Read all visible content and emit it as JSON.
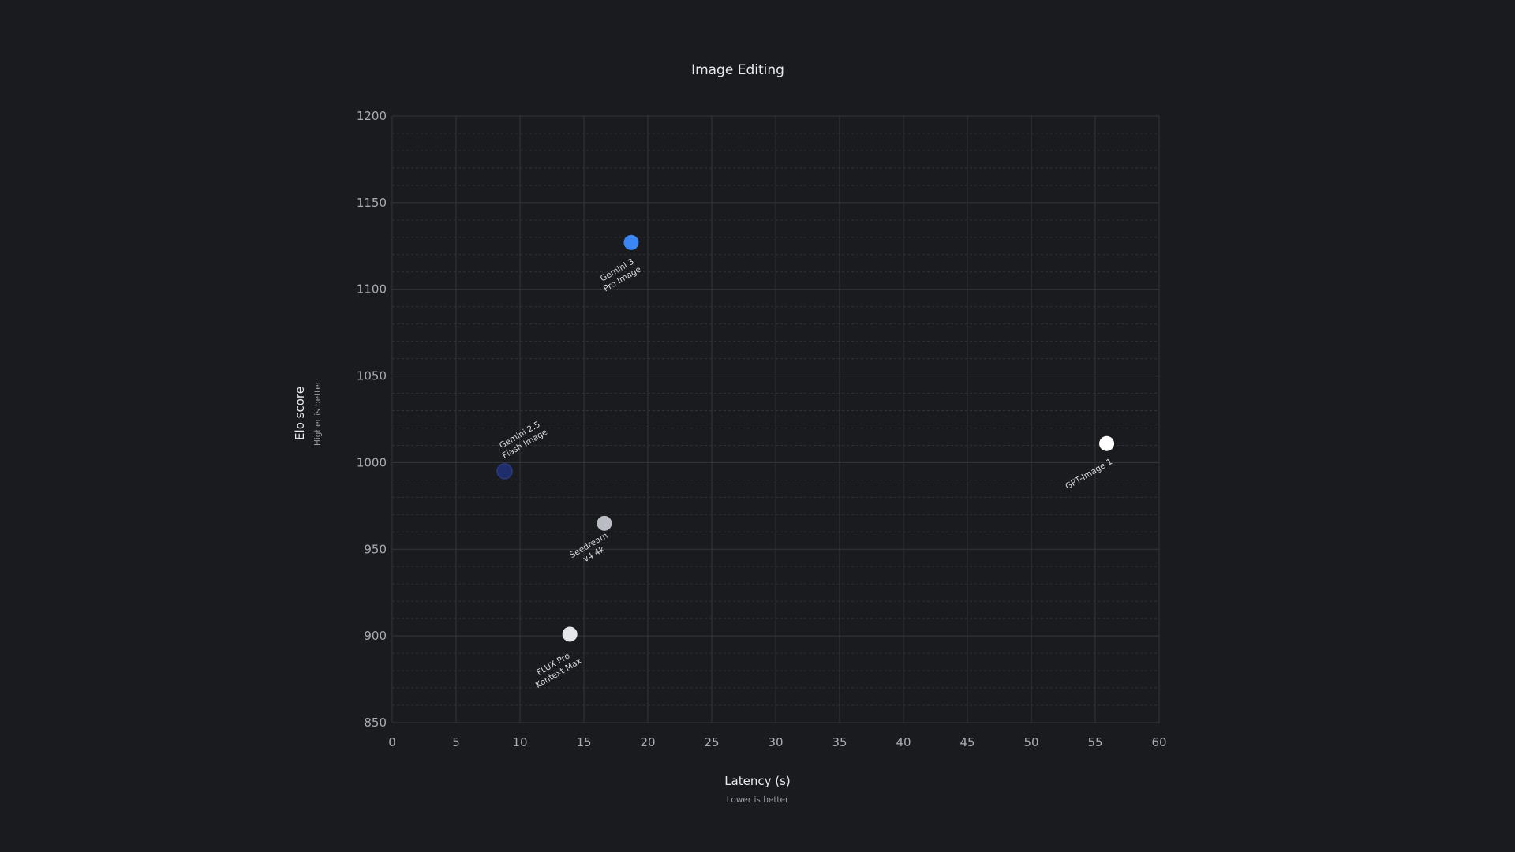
{
  "chart_data": {
    "type": "scatter",
    "title": "Image Editing",
    "xlabel": "Latency (s)",
    "xlabel_sub": "Lower is better",
    "ylabel": "Elo score",
    "ylabel_sub": "Higher is better",
    "xlim": [
      0,
      60
    ],
    "ylim": [
      850,
      1200
    ],
    "xticks": [
      0,
      5,
      10,
      15,
      20,
      25,
      30,
      35,
      40,
      45,
      50,
      55,
      60
    ],
    "yticks": [
      850,
      900,
      950,
      1000,
      1050,
      1100,
      1150,
      1200
    ],
    "grid": true,
    "points": [
      {
        "name": "Gemini 3 Pro Image",
        "lines": [
          "Gemini 3",
          "Pro Image"
        ],
        "x": 18.7,
        "y": 1127,
        "color": "#3b86f7"
      },
      {
        "name": "Gemini 2.5 Flash Image",
        "lines": [
          "Gemini 2.5",
          "Flash Image"
        ],
        "x": 8.8,
        "y": 995,
        "color": "#1f2d6c"
      },
      {
        "name": "Seedream v4 4k",
        "lines": [
          "Seedream",
          "v4 4k"
        ],
        "x": 16.6,
        "y": 965,
        "color": "#b9bcc3"
      },
      {
        "name": "FLUX Pro Kontext Max",
        "lines": [
          "FLUX Pro",
          "Kontext Max"
        ],
        "x": 13.9,
        "y": 901,
        "color": "#e6e7ea"
      },
      {
        "name": "GPT-Image 1",
        "lines": [
          "GPT-Image 1"
        ],
        "x": 55.9,
        "y": 1011,
        "color": "#ffffff"
      }
    ]
  }
}
